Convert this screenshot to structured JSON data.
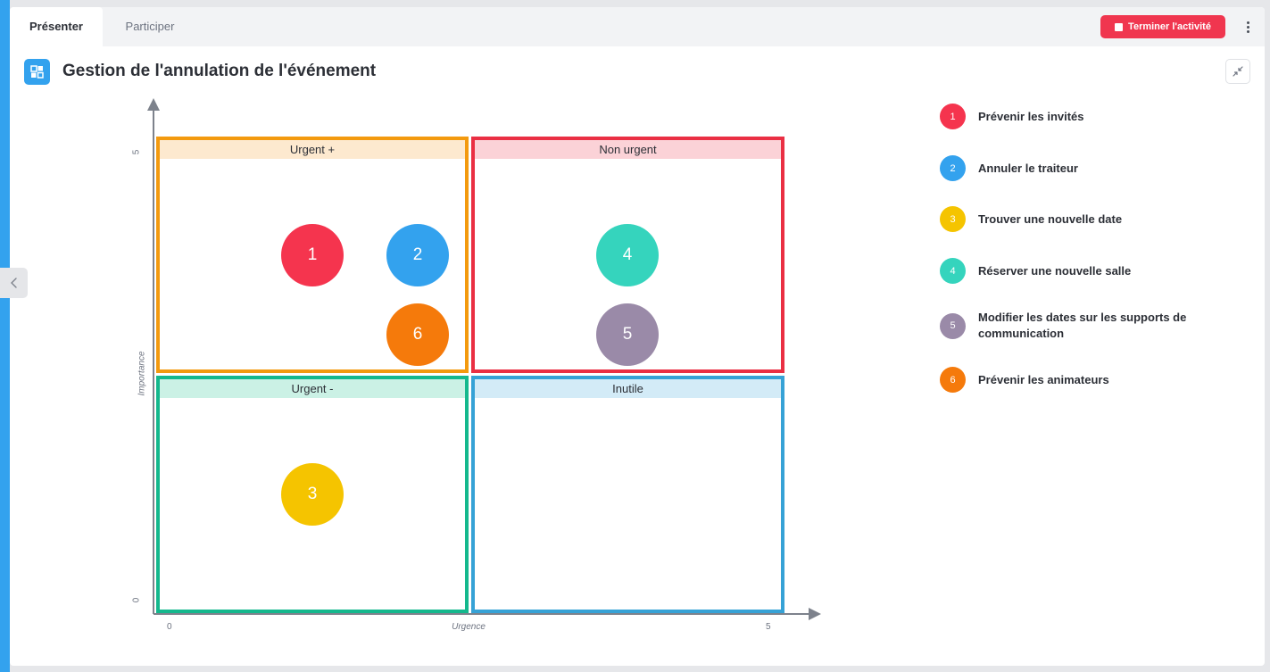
{
  "tabs": [
    {
      "label": "Présenter",
      "active": true
    },
    {
      "label": "Participer",
      "active": false
    }
  ],
  "end_button": {
    "label": "Terminer l'activité",
    "color": "#f0364f"
  },
  "activity": {
    "title": "Gestion de l'annulation de l'événement",
    "icon": "matrix-grid-icon",
    "accent": "#33a2ee"
  },
  "matrix": {
    "x_axis": {
      "label": "Urgence",
      "min": "0",
      "max": "5"
    },
    "y_axis": {
      "label": "Importance",
      "min": "0",
      "max": "5"
    },
    "quadrants": [
      {
        "label": "Urgent +",
        "border": "#f39a0f",
        "header_bg": "#fde9cf"
      },
      {
        "label": "Non urgent",
        "border": "#ea2f43",
        "header_bg": "#fbd2d7"
      },
      {
        "label": "Urgent -",
        "border": "#14b88d",
        "header_bg": "#cbf1e5"
      },
      {
        "label": "Inutile",
        "border": "#36a2d6",
        "header_bg": "#d3ebf7"
      }
    ]
  },
  "items": [
    {
      "number": "1",
      "label": "Prévenir les invités",
      "color": "#f5344e"
    },
    {
      "number": "2",
      "label": "Annuler le traiteur",
      "color": "#33a2ee"
    },
    {
      "number": "3",
      "label": "Trouver une nouvelle date",
      "color": "#f5c400"
    },
    {
      "number": "4",
      "label": "Réserver une nouvelle salle",
      "color": "#35d4bd"
    },
    {
      "number": "5",
      "label": "Modifier les dates sur les supports de communication",
      "color": "#9a8aa8"
    },
    {
      "number": "6",
      "label": "Prévenir les animateurs",
      "color": "#f57a0b"
    }
  ]
}
